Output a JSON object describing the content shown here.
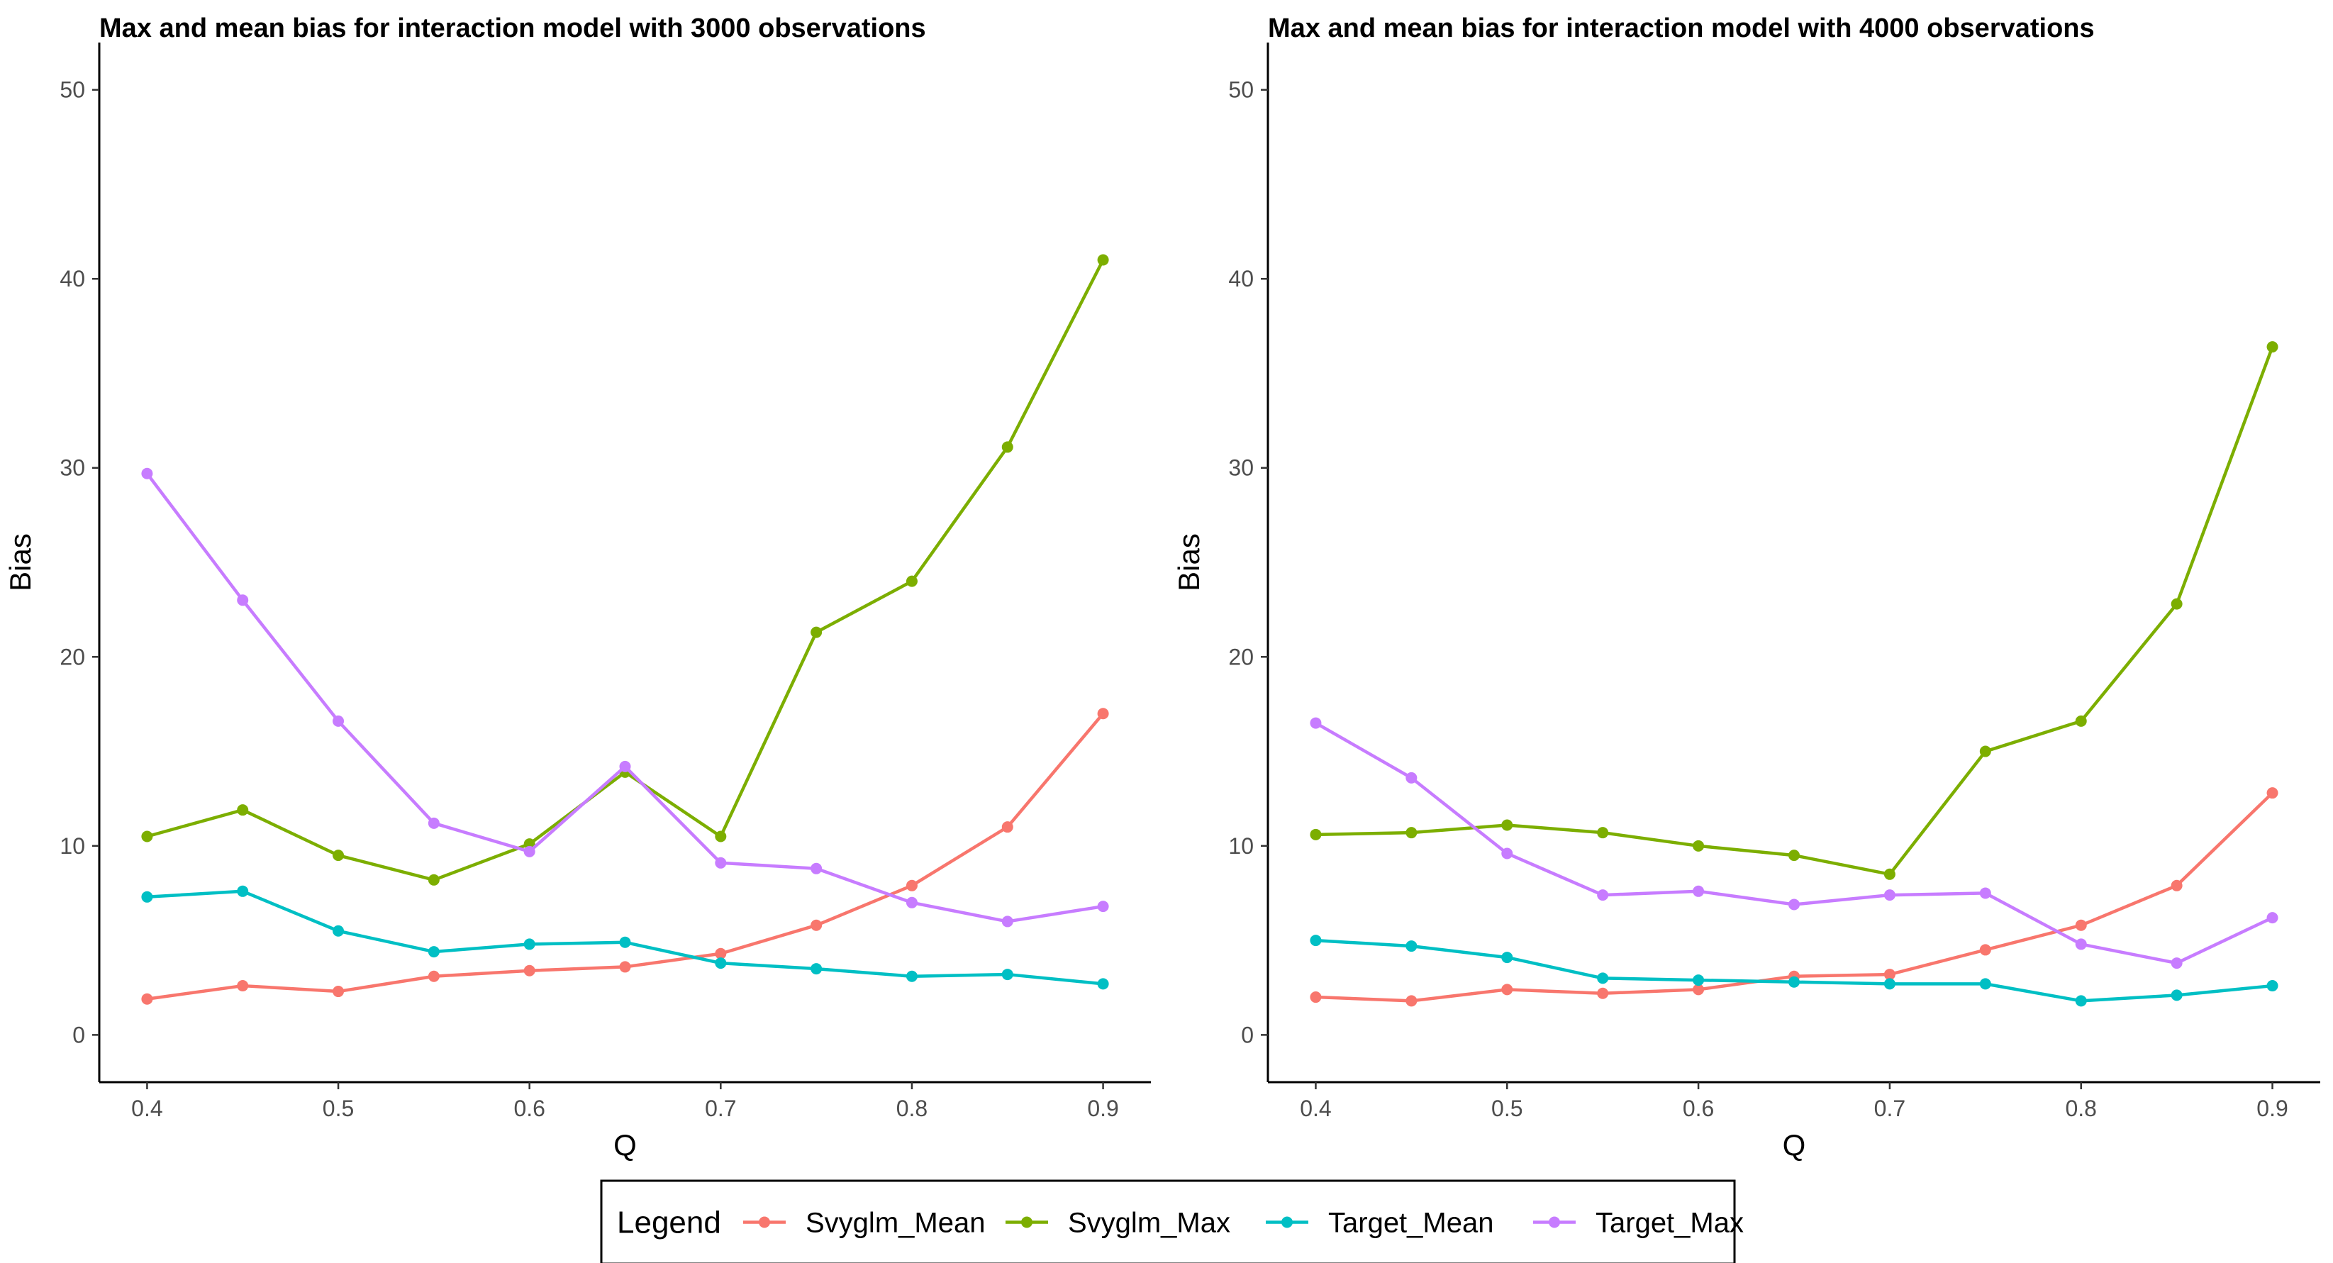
{
  "chart_data": [
    {
      "type": "line",
      "title": "Max and mean bias for interaction model with 3000 observations",
      "xlabel": "Q",
      "ylabel": "Bias",
      "x": [
        0.4,
        0.45,
        0.5,
        0.55,
        0.6,
        0.65,
        0.7,
        0.75,
        0.8,
        0.85,
        0.9
      ],
      "xticks": [
        "0.4",
        "0.5",
        "0.6",
        "0.7",
        "0.8",
        "0.9"
      ],
      "yticks": [
        "0",
        "10",
        "20",
        "30",
        "40",
        "50"
      ],
      "xlim": [
        0.375,
        0.925
      ],
      "ylim": [
        -2.5,
        52.5
      ],
      "grid": false,
      "series": [
        {
          "name": "Svyglm_Mean",
          "color": "#F8766D",
          "values": [
            1.9,
            2.6,
            2.3,
            3.1,
            3.4,
            3.6,
            4.3,
            5.8,
            7.9,
            11.0,
            17.0
          ]
        },
        {
          "name": "Svyglm_Max",
          "color": "#7CAE00",
          "values": [
            10.5,
            11.9,
            9.5,
            8.2,
            10.1,
            13.9,
            10.5,
            21.3,
            24.0,
            31.1,
            41.0
          ]
        },
        {
          "name": "Target_Mean",
          "color": "#00BFC4",
          "values": [
            7.3,
            7.6,
            5.5,
            4.4,
            4.8,
            4.9,
            3.8,
            3.5,
            3.1,
            3.2,
            2.7
          ]
        },
        {
          "name": "Target_Max",
          "color": "#C77CFF",
          "values": [
            29.7,
            23.0,
            16.6,
            11.2,
            9.7,
            14.2,
            9.1,
            8.8,
            7.0,
            6.0,
            6.8
          ]
        }
      ]
    },
    {
      "type": "line",
      "title": "Max and mean bias for interaction model with 4000 observations",
      "xlabel": "Q",
      "ylabel": "Bias",
      "x": [
        0.4,
        0.45,
        0.5,
        0.55,
        0.6,
        0.65,
        0.7,
        0.75,
        0.8,
        0.85,
        0.9
      ],
      "xticks": [
        "0.4",
        "0.5",
        "0.6",
        "0.7",
        "0.8",
        "0.9"
      ],
      "yticks": [
        "0",
        "10",
        "20",
        "30",
        "40",
        "50"
      ],
      "xlim": [
        0.375,
        0.925
      ],
      "ylim": [
        -2.5,
        52.5
      ],
      "grid": false,
      "series": [
        {
          "name": "Svyglm_Mean",
          "color": "#F8766D",
          "values": [
            2.0,
            1.8,
            2.4,
            2.2,
            2.4,
            3.1,
            3.2,
            4.5,
            5.8,
            7.9,
            12.8
          ]
        },
        {
          "name": "Svyglm_Max",
          "color": "#7CAE00",
          "values": [
            10.6,
            10.7,
            11.1,
            10.7,
            10.0,
            9.5,
            8.5,
            15.0,
            16.6,
            22.8,
            36.4
          ]
        },
        {
          "name": "Target_Mean",
          "color": "#00BFC4",
          "values": [
            5.0,
            4.7,
            4.1,
            3.0,
            2.9,
            2.8,
            2.7,
            2.7,
            1.8,
            2.1,
            2.6
          ]
        },
        {
          "name": "Target_Max",
          "color": "#C77CFF",
          "values": [
            16.5,
            13.6,
            9.6,
            7.4,
            7.6,
            6.9,
            7.4,
            7.5,
            4.8,
            3.8,
            6.2
          ]
        }
      ]
    }
  ],
  "legend": {
    "title": "Legend",
    "placement": "bottom",
    "entries": [
      {
        "label": "Svyglm_Mean",
        "color": "#F8766D"
      },
      {
        "label": "Svyglm_Max",
        "color": "#7CAE00"
      },
      {
        "label": "Target_Mean",
        "color": "#00BFC4"
      },
      {
        "label": "Target_Max",
        "color": "#C77CFF"
      }
    ]
  }
}
